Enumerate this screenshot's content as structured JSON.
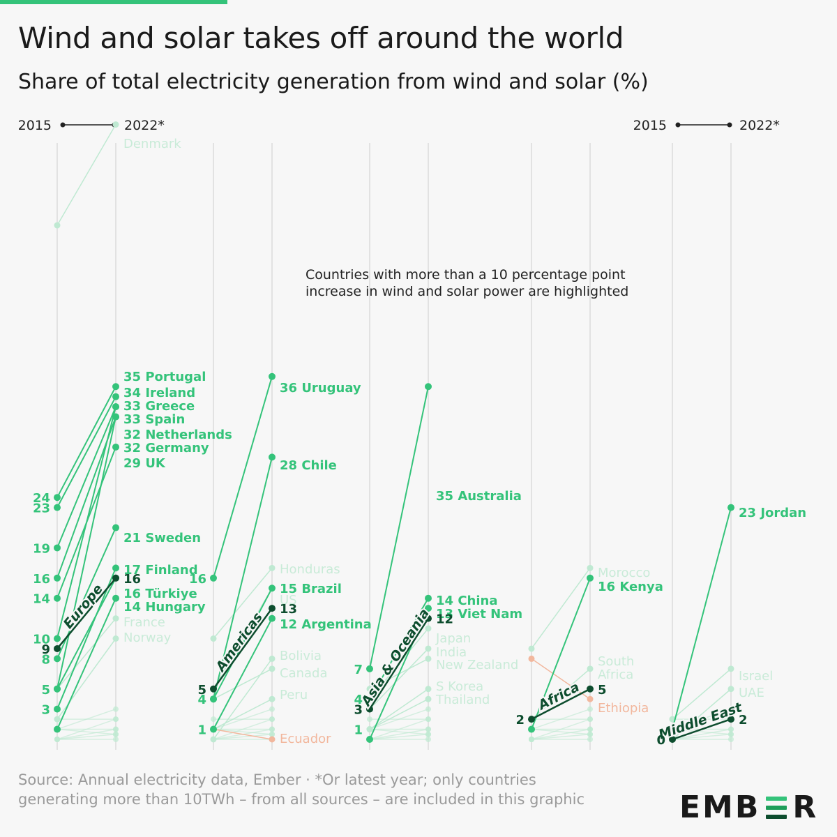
{
  "title": "Wind and solar takes off around the world",
  "subtitle": "Share of total electricity generation from wind and solar (%)",
  "source": "Source: Annual electricity data, Ember · *Or latest year; only countries generating more than 10TWh – from all sources – are included in this graphic",
  "logo": {
    "part1": "EMB",
    "part2": "R"
  },
  "annotation": [
    "Countries with more than a 10 percentage point",
    "increase in wind and solar power are highlighted"
  ],
  "colors": {
    "highlight": "#34c37a",
    "faded": "#bfe9d2",
    "decline": "#f2b79d",
    "regional": "#0d4d2e",
    "axis": "#cccccc",
    "logo_green1": "#34c37a",
    "logo_green2": "#1e9e5a",
    "logo_green3": "#0d4d2e"
  },
  "chart_data": {
    "type": "slope",
    "x": [
      "2015",
      "2022*"
    ],
    "y_unit": "%",
    "panels": [
      {
        "region": "Europe",
        "regional_value": [
          9,
          16
        ],
        "start_labels": [
          "24",
          "23",
          "19",
          "16",
          "14",
          "10",
          "9",
          "8",
          "5",
          "3"
        ],
        "highlighted": [
          {
            "name": "Portugal",
            "v2015": 24,
            "v2022": 35
          },
          {
            "name": "Ireland",
            "v2015": 23,
            "v2022": 34
          },
          {
            "name": "Greece",
            "v2015": 10,
            "v2022": 33
          },
          {
            "name": "Spain",
            "v2015": 19,
            "v2022": 33
          },
          {
            "name": "Netherlands",
            "v2015": 5,
            "v2022": 32
          },
          {
            "name": "Germany",
            "v2015": 16,
            "v2022": 32
          },
          {
            "name": "UK",
            "v2015": 14,
            "v2022": 29
          },
          {
            "name": "Sweden",
            "v2015": 8,
            "v2022": 21
          },
          {
            "name": "Finland",
            "v2015": 3,
            "v2022": 17
          },
          {
            "name": "Türkiye",
            "v2015": 5,
            "v2022": 16
          },
          {
            "name": "Hungary",
            "v2015": 1,
            "v2022": 14
          }
        ],
        "faded": [
          {
            "name": "Denmark",
            "v2015": 51,
            "v2022": 61
          },
          {
            "name": "France",
            "v2015": 5,
            "v2022": 12
          },
          {
            "name": "Norway",
            "v2015": 2,
            "v2022": 10
          }
        ]
      },
      {
        "region": "Americas",
        "regional_value": [
          5,
          13
        ],
        "start_labels": [
          "16",
          "5",
          "4",
          "1"
        ],
        "highlighted": [
          {
            "name": "Uruguay",
            "v2015": 16,
            "v2022": 36
          },
          {
            "name": "Chile",
            "v2015": 4,
            "v2022": 28
          },
          {
            "name": "Brazil",
            "v2015": 4,
            "v2022": 15
          },
          {
            "name": "Argentina",
            "v2015": 1,
            "v2022": 12
          }
        ],
        "faded": [
          {
            "name": "Honduras",
            "v2015": 10,
            "v2022": 17
          },
          {
            "name": "US",
            "v2015": 5,
            "v2022": 15
          },
          {
            "name": "Bolivia",
            "v2015": 0,
            "v2022": 8
          },
          {
            "name": "Canada",
            "v2015": 4,
            "v2022": 7
          },
          {
            "name": "Peru",
            "v2015": 1,
            "v2022": 4
          }
        ],
        "declined": [
          {
            "name": "Ecuador",
            "v2015": 1,
            "v2022": 0
          }
        ]
      },
      {
        "region": "Asia & Oceania",
        "regional_value": [
          3,
          12
        ],
        "start_labels": [
          "7",
          "4",
          "3",
          "1"
        ],
        "highlighted": [
          {
            "name": "Australia",
            "v2015": 7,
            "v2022": 35
          },
          {
            "name": "China",
            "v2015": 4,
            "v2022": 14
          },
          {
            "name": "Viet Nam",
            "v2015": 0,
            "v2022": 13
          }
        ],
        "faded": [
          {
            "name": "Japan",
            "v2015": 4,
            "v2022": 11
          },
          {
            "name": "India",
            "v2015": 3,
            "v2022": 9
          },
          {
            "name": "New Zealand",
            "v2015": 5,
            "v2022": 8
          },
          {
            "name": "S Korea",
            "v2015": 1,
            "v2022": 5
          },
          {
            "name": "Thailand",
            "v2015": 1,
            "v2022": 4
          }
        ]
      },
      {
        "region": "Africa",
        "regional_value": [
          2,
          5
        ],
        "start_labels": [
          "2"
        ],
        "highlighted": [
          {
            "name": "Kenya",
            "v2015": 1,
            "v2022": 16
          }
        ],
        "faded": [
          {
            "name": "Morocco",
            "v2015": 9,
            "v2022": 17
          },
          {
            "name": "South Africa",
            "v2015": 2,
            "v2022": 7
          }
        ],
        "declined": [
          {
            "name": "Ethiopia",
            "v2015": 8,
            "v2022": 4
          }
        ]
      },
      {
        "region": "Middle East",
        "regional_value": [
          0,
          2
        ],
        "start_labels": [
          "0"
        ],
        "highlighted": [
          {
            "name": "Jordan",
            "v2015": 1,
            "v2022": 23
          }
        ],
        "faded": [
          {
            "name": "Israel",
            "v2015": 2,
            "v2022": 7
          },
          {
            "name": "UAE",
            "v2015": 0,
            "v2022": 5
          }
        ]
      }
    ]
  }
}
